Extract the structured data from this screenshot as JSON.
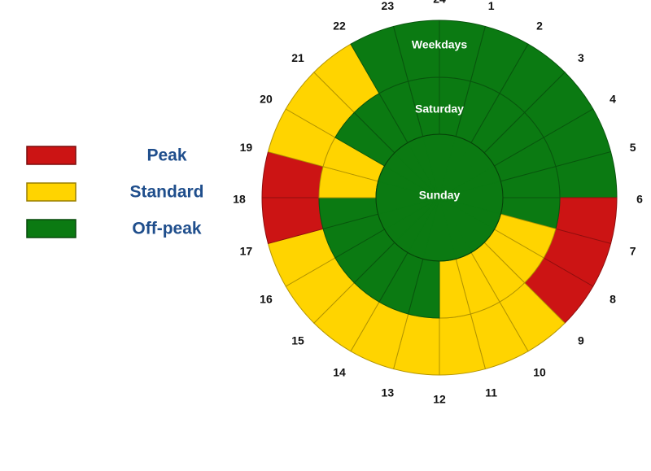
{
  "legend": [
    {
      "label": "Peak",
      "color": "#cc1414"
    },
    {
      "label": "Standard",
      "color": "#ffd400"
    },
    {
      "label": "Off-peak",
      "color": "#0b7a12"
    }
  ],
  "hours": [
    "24",
    "1",
    "2",
    "3",
    "4",
    "5",
    "6",
    "7",
    "8",
    "9",
    "10",
    "11",
    "12",
    "13",
    "14",
    "15",
    "16",
    "17",
    "18",
    "19",
    "20",
    "21",
    "22",
    "23"
  ],
  "rings": [
    {
      "label": "Weekdays",
      "periods": [
        2,
        2,
        2,
        2,
        2,
        2,
        0,
        0,
        0,
        1,
        1,
        1,
        1,
        1,
        1,
        1,
        1,
        0,
        0,
        1,
        1,
        1,
        2,
        2
      ]
    },
    {
      "label": "Saturday",
      "periods": [
        2,
        2,
        2,
        2,
        2,
        2,
        2,
        1,
        1,
        1,
        1,
        1,
        2,
        2,
        2,
        2,
        2,
        2,
        1,
        1,
        2,
        2,
        2,
        2
      ]
    },
    {
      "label": "Sunday",
      "periods": [
        2,
        2,
        2,
        2,
        2,
        2,
        2,
        2,
        2,
        2,
        2,
        2,
        2,
        2,
        2,
        2,
        2,
        2,
        2,
        2,
        2,
        2,
        2,
        2
      ]
    }
  ]
}
